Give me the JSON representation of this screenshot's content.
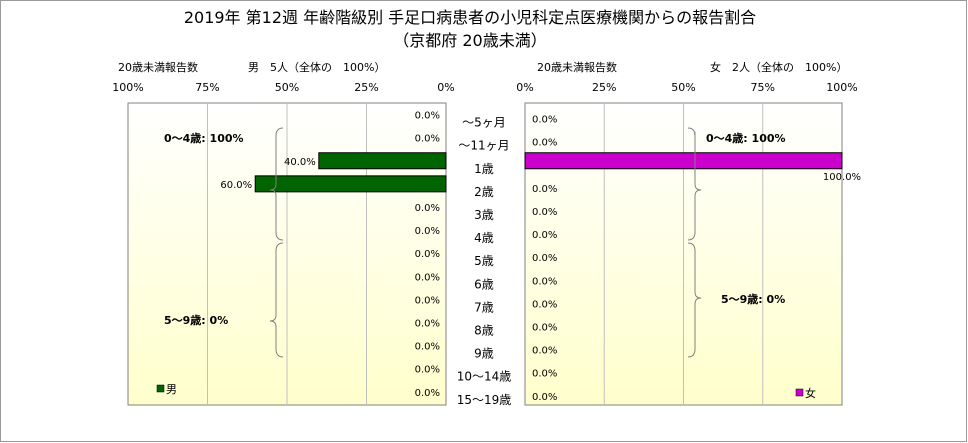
{
  "title": "2019年 第12週 年齢階級別 手足口病患者の小児科定点医療機関からの報告割合",
  "subtitle": "（京都府 20歳未満）",
  "colors": {
    "male": "#006400",
    "female": "#cc00cc",
    "bg_top": "#ffffff",
    "bg_bottom": "#ffffcc"
  },
  "male_panel": {
    "count_label": "20歳未満報告数",
    "header": "男　5人（全体の　100%）",
    "legend": "男",
    "brackets": [
      "0～4歳: 100%",
      "5～9歳: 0%"
    ]
  },
  "female_panel": {
    "count_label": "20歳未満報告数",
    "header": "女　2人（全体の　100%）",
    "legend": "女",
    "brackets": [
      "0～4歳: 100%",
      "5～9歳: 0%"
    ]
  },
  "chart_data": {
    "type": "bar",
    "title": "2019年 第12週 年齢階級別 手足口病患者の小児科定点医療機関からの報告割合",
    "subtitle": "（京都府 20歳未満）",
    "categories": [
      "～5ヶ月",
      "～11ヶ月",
      "1歳",
      "2歳",
      "3歳",
      "4歳",
      "5歳",
      "6歳",
      "7歳",
      "8歳",
      "9歳",
      "10～14歳",
      "15～19歳"
    ],
    "male_ticks": [
      "100%",
      "75%",
      "50%",
      "25%",
      "0%"
    ],
    "female_ticks": [
      "0%",
      "25%",
      "50%",
      "75%",
      "100%"
    ],
    "series": [
      {
        "name": "男",
        "values": [
          0,
          0,
          40,
          60,
          0,
          0,
          0,
          0,
          0,
          0,
          0,
          0,
          0
        ]
      },
      {
        "name": "女",
        "values": [
          0,
          0,
          100,
          0,
          0,
          0,
          0,
          0,
          0,
          0,
          0,
          0,
          0
        ]
      }
    ],
    "xlim": [
      0,
      100
    ],
    "grid": true
  }
}
